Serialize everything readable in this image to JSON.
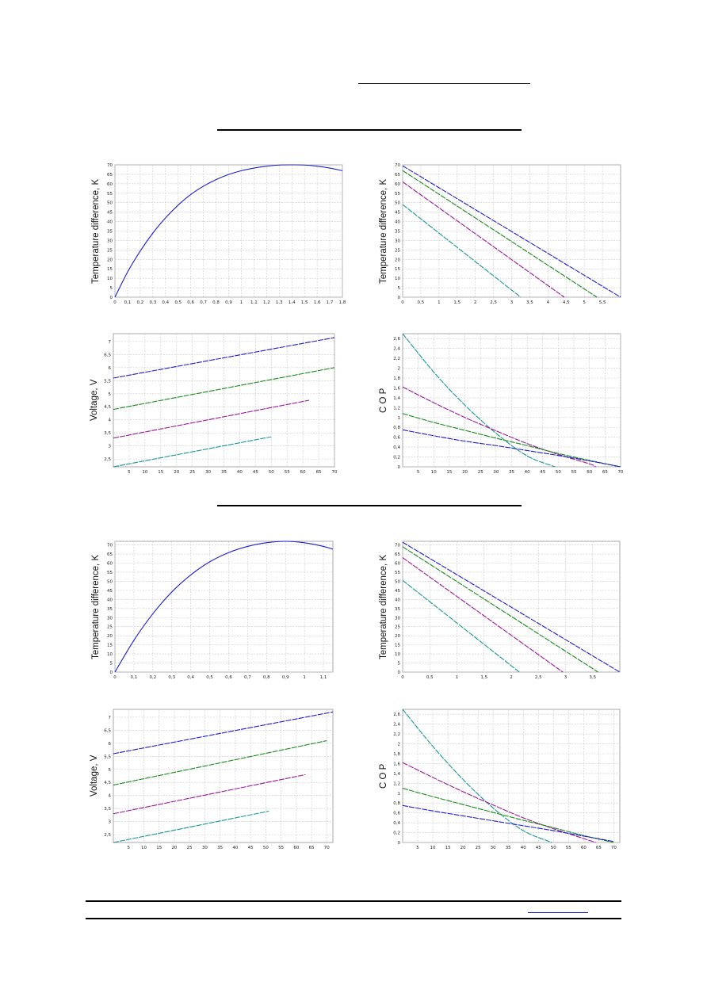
{
  "colors": {
    "blue": "#1d1dcf",
    "green": "#1a8a1a",
    "purple": "#9a189a",
    "teal": "#1a9696",
    "grid": "#c8c8c8",
    "plot_border": "#a8a8a8"
  },
  "chart_data": [
    {
      "id": "s1-dt-current",
      "type": "line",
      "ylabel": "Temperature difference, K",
      "xlim": [
        0,
        1.8
      ],
      "ylim": [
        0,
        70
      ],
      "xticks": [
        0,
        0.1,
        0.2,
        0.3,
        0.4,
        0.5,
        0.6,
        0.7,
        0.8,
        0.9,
        1,
        1.1,
        1.2,
        1.3,
        1.4,
        1.5,
        1.6,
        1.7,
        1.8
      ],
      "xtick_labels": [
        "0",
        "0,1",
        "0,2",
        "0,3",
        "0,4",
        "0,5",
        "0,6",
        "0,7",
        "0,8",
        "0,9",
        "1",
        "1,1",
        "1,2",
        "1,3",
        "1,4",
        "1,5",
        "1,6",
        "1,7",
        "1,8"
      ],
      "yticks": [
        0,
        5,
        10,
        15,
        20,
        25,
        30,
        35,
        40,
        45,
        50,
        55,
        60,
        65,
        70
      ],
      "ytick_labels": [
        "0",
        "5",
        "10",
        "15",
        "20",
        "25",
        "30",
        "35",
        "40",
        "45",
        "50",
        "55",
        "60",
        "65",
        "70"
      ],
      "series": [
        {
          "color": "blue",
          "x": [
            0,
            0.1,
            0.2,
            0.3,
            0.4,
            0.5,
            0.6,
            0.7,
            0.8,
            0.9,
            1.0,
            1.1,
            1.2,
            1.3,
            1.4,
            1.5,
            1.6,
            1.7,
            1.8
          ],
          "y": [
            0,
            13.3,
            24.4,
            33.9,
            41.9,
            48.7,
            54.3,
            58.7,
            62.2,
            64.9,
            66.9,
            68.3,
            69.3,
            69.9,
            70,
            69.9,
            69.3,
            68.3,
            66.9
          ]
        }
      ]
    },
    {
      "id": "s1-dt-q",
      "type": "line",
      "ylabel": "Temperature difference, K",
      "xlim": [
        0,
        6
      ],
      "ylim": [
        0,
        70
      ],
      "xticks": [
        0,
        0.5,
        1,
        1.5,
        2,
        2.5,
        3,
        3.5,
        4,
        4.5,
        5,
        5.5
      ],
      "xtick_labels": [
        "0",
        "0,5",
        "1",
        "1,5",
        "2",
        "2,5",
        "3",
        "3,5",
        "4",
        "4,5",
        "5",
        "5,5"
      ],
      "yticks": [
        0,
        5,
        10,
        15,
        20,
        25,
        30,
        35,
        40,
        45,
        50,
        55,
        60,
        65,
        70
      ],
      "ytick_labels": [
        "0",
        "5",
        "10",
        "15",
        "20",
        "25",
        "30",
        "35",
        "40",
        "45",
        "50",
        "55",
        "60",
        "65",
        "70"
      ],
      "series": [
        {
          "color": "blue",
          "x": [
            0,
            6.0
          ],
          "y": [
            69.5,
            0
          ]
        },
        {
          "color": "green",
          "x": [
            0,
            5.35
          ],
          "y": [
            67,
            0
          ]
        },
        {
          "color": "purple",
          "x": [
            0,
            4.45
          ],
          "y": [
            61,
            0
          ]
        },
        {
          "color": "teal",
          "x": [
            0,
            3.25
          ],
          "y": [
            49,
            0
          ]
        }
      ]
    },
    {
      "id": "s1-voltage",
      "type": "line",
      "ylabel": "Voltage, V",
      "xlim": [
        0,
        70
      ],
      "ylim": [
        2.2,
        7.3
      ],
      "xticks": [
        5,
        10,
        15,
        20,
        25,
        30,
        35,
        40,
        45,
        50,
        55,
        60,
        65,
        70
      ],
      "xtick_labels": [
        "5",
        "10",
        "15",
        "20",
        "25",
        "30",
        "35",
        "40",
        "45",
        "50",
        "55",
        "60",
        "65",
        "70"
      ],
      "yticks": [
        2.5,
        3,
        3.5,
        4,
        4.5,
        5,
        5.5,
        6,
        6.5,
        7
      ],
      "ytick_labels": [
        "2,5",
        "3",
        "3,5",
        "4",
        "4,5",
        "5",
        "5,5",
        "6",
        "6,5",
        "7"
      ],
      "series": [
        {
          "color": "blue",
          "x": [
            0,
            70
          ],
          "y": [
            5.6,
            7.15
          ]
        },
        {
          "color": "green",
          "x": [
            0,
            70
          ],
          "y": [
            4.4,
            6.0
          ]
        },
        {
          "color": "purple",
          "x": [
            0,
            62
          ],
          "y": [
            3.3,
            4.75
          ]
        },
        {
          "color": "teal",
          "x": [
            0,
            50
          ],
          "y": [
            2.2,
            3.35
          ]
        }
      ]
    },
    {
      "id": "s1-cop",
      "type": "line",
      "ylabel": "C O P",
      "xlim": [
        0,
        70
      ],
      "ylim": [
        0,
        2.7
      ],
      "xticks": [
        5,
        10,
        15,
        20,
        25,
        30,
        35,
        40,
        45,
        50,
        55,
        60,
        65,
        70
      ],
      "xtick_labels": [
        "5",
        "10",
        "15",
        "20",
        "25",
        "30",
        "35",
        "40",
        "45",
        "50",
        "55",
        "60",
        "65",
        "70"
      ],
      "yticks": [
        0,
        0.2,
        0.4,
        0.6,
        0.8,
        1,
        1.2,
        1.4,
        1.6,
        1.8,
        2,
        2.2,
        2.4,
        2.6
      ],
      "ytick_labels": [
        "0",
        "0,2",
        "0,4",
        "0,6",
        "0,8",
        "1",
        "1,2",
        "1,4",
        "1,6",
        "1,8",
        "2",
        "2,2",
        "2,4",
        "2,6"
      ],
      "series": [
        {
          "color": "teal",
          "x": [
            0,
            10,
            20,
            30,
            40,
            49
          ],
          "y": [
            2.7,
            1.92,
            1.25,
            0.68,
            0.22,
            0
          ]
        },
        {
          "color": "purple",
          "x": [
            0,
            10,
            20,
            30,
            40,
            50,
            60,
            62
          ],
          "y": [
            1.62,
            1.3,
            1.0,
            0.73,
            0.47,
            0.25,
            0.06,
            0
          ]
        },
        {
          "color": "green",
          "x": [
            0,
            10,
            20,
            30,
            40,
            50,
            60,
            70
          ],
          "y": [
            1.08,
            0.9,
            0.74,
            0.58,
            0.43,
            0.27,
            0.13,
            0
          ]
        },
        {
          "color": "blue",
          "x": [
            0,
            10,
            20,
            30,
            40,
            50,
            60,
            70
          ],
          "y": [
            0.75,
            0.63,
            0.52,
            0.43,
            0.33,
            0.23,
            0.12,
            0
          ]
        }
      ]
    },
    {
      "id": "s2-dt-current",
      "type": "line",
      "ylabel": "Temperature difference, K",
      "xlim": [
        0,
        1.15
      ],
      "ylim": [
        0,
        72
      ],
      "xticks": [
        0,
        0.1,
        0.2,
        0.3,
        0.4,
        0.5,
        0.6,
        0.7,
        0.8,
        0.9,
        1,
        1.1
      ],
      "xtick_labels": [
        "0",
        "0,1",
        "0,2",
        "0,3",
        "0,4",
        "0,5",
        "0,6",
        "0,7",
        "0,8",
        "0,9",
        "1",
        "1,1"
      ],
      "yticks": [
        0,
        5,
        10,
        15,
        20,
        25,
        30,
        35,
        40,
        45,
        50,
        55,
        60,
        65,
        70
      ],
      "ytick_labels": [
        "0",
        "5",
        "10",
        "15",
        "20",
        "25",
        "30",
        "35",
        "40",
        "45",
        "50",
        "55",
        "60",
        "65",
        "70"
      ],
      "series": [
        {
          "color": "blue",
          "x": [
            0,
            0.1,
            0.2,
            0.3,
            0.4,
            0.5,
            0.6,
            0.7,
            0.8,
            0.9,
            1.0,
            1.1,
            1.15
          ],
          "y": [
            0,
            17.5,
            32.1,
            44.1,
            53.5,
            60.7,
            65.8,
            69.2,
            71.2,
            72,
            71.2,
            69.2,
            67.7
          ]
        }
      ]
    },
    {
      "id": "s2-dt-q",
      "type": "line",
      "ylabel": "Temperature difference, K",
      "xlim": [
        0,
        4.0
      ],
      "ylim": [
        0,
        72
      ],
      "xticks": [
        0,
        0.5,
        1,
        1.5,
        2,
        2.5,
        3,
        3.5
      ],
      "xtick_labels": [
        "0",
        "0,5",
        "1",
        "1,5",
        "2",
        "2,5",
        "3",
        "3,5"
      ],
      "yticks": [
        0,
        5,
        10,
        15,
        20,
        25,
        30,
        35,
        40,
        45,
        50,
        55,
        60,
        65,
        70
      ],
      "ytick_labels": [
        "0",
        "5",
        "10",
        "15",
        "20",
        "25",
        "30",
        "35",
        "40",
        "45",
        "50",
        "55",
        "60",
        "65",
        "70"
      ],
      "series": [
        {
          "color": "blue",
          "x": [
            0,
            4.0
          ],
          "y": [
            71.5,
            0
          ]
        },
        {
          "color": "green",
          "x": [
            0,
            3.6
          ],
          "y": [
            69,
            0
          ]
        },
        {
          "color": "purple",
          "x": [
            0,
            2.95
          ],
          "y": [
            63,
            0
          ]
        },
        {
          "color": "teal",
          "x": [
            0,
            2.15
          ],
          "y": [
            50.5,
            0
          ]
        }
      ]
    },
    {
      "id": "s2-voltage",
      "type": "line",
      "ylabel": "Voltage, V",
      "xlim": [
        0,
        72
      ],
      "ylim": [
        2.2,
        7.3
      ],
      "xticks": [
        5,
        10,
        15,
        20,
        25,
        30,
        35,
        40,
        45,
        50,
        55,
        60,
        65,
        70
      ],
      "xtick_labels": [
        "5",
        "10",
        "15",
        "20",
        "25",
        "30",
        "35",
        "40",
        "45",
        "50",
        "55",
        "60",
        "65",
        "70"
      ],
      "yticks": [
        2.5,
        3,
        3.5,
        4,
        4.5,
        5,
        5.5,
        6,
        6.5,
        7
      ],
      "ytick_labels": [
        "2,5",
        "3",
        "3,5",
        "4",
        "4,5",
        "5",
        "5,5",
        "6",
        "6,5",
        "7"
      ],
      "series": [
        {
          "color": "blue",
          "x": [
            0,
            72
          ],
          "y": [
            5.6,
            7.2
          ]
        },
        {
          "color": "green",
          "x": [
            0,
            70
          ],
          "y": [
            4.4,
            6.1
          ]
        },
        {
          "color": "purple",
          "x": [
            0,
            63
          ],
          "y": [
            3.3,
            4.8
          ]
        },
        {
          "color": "teal",
          "x": [
            0,
            51
          ],
          "y": [
            2.2,
            3.4
          ]
        }
      ]
    },
    {
      "id": "s2-cop",
      "type": "line",
      "ylabel": "C O P",
      "xlim": [
        0,
        72
      ],
      "ylim": [
        0,
        2.7
      ],
      "xticks": [
        5,
        10,
        15,
        20,
        25,
        30,
        35,
        40,
        45,
        50,
        55,
        60,
        65,
        70
      ],
      "xtick_labels": [
        "5",
        "10",
        "15",
        "20",
        "25",
        "30",
        "35",
        "40",
        "45",
        "50",
        "55",
        "60",
        "65",
        "70"
      ],
      "yticks": [
        0,
        0.2,
        0.4,
        0.6,
        0.8,
        1,
        1.2,
        1.4,
        1.6,
        1.8,
        2,
        2.2,
        2.4,
        2.6
      ],
      "ytick_labels": [
        "0",
        "0,2",
        "0,4",
        "0,6",
        "0,8",
        "1",
        "1,2",
        "1,4",
        "1,6",
        "1,8",
        "2",
        "2,2",
        "2,4",
        "2,6"
      ],
      "series": [
        {
          "color": "teal",
          "x": [
            0,
            10,
            20,
            30,
            40,
            49.5
          ],
          "y": [
            2.7,
            1.95,
            1.28,
            0.7,
            0.24,
            0
          ]
        },
        {
          "color": "purple",
          "x": [
            0,
            10,
            20,
            30,
            40,
            50,
            60,
            64
          ],
          "y": [
            1.62,
            1.32,
            1.03,
            0.76,
            0.5,
            0.28,
            0.08,
            0
          ]
        },
        {
          "color": "green",
          "x": [
            0,
            10,
            20,
            30,
            40,
            50,
            60,
            70
          ],
          "y": [
            1.1,
            0.93,
            0.77,
            0.61,
            0.45,
            0.3,
            0.14,
            0
          ]
        },
        {
          "color": "blue",
          "x": [
            0,
            10,
            20,
            30,
            40,
            50,
            60,
            70
          ],
          "y": [
            0.75,
            0.64,
            0.54,
            0.44,
            0.34,
            0.24,
            0.13,
            0.02
          ]
        }
      ]
    }
  ]
}
